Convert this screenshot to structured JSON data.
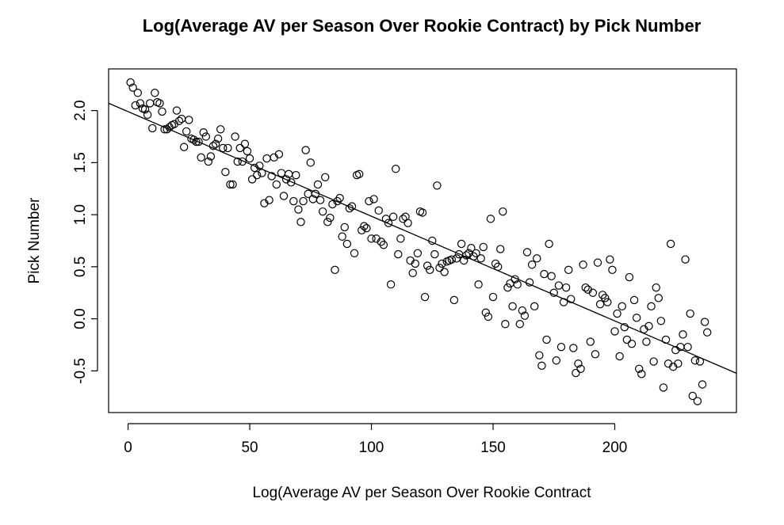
{
  "chart_data": {
    "type": "scatter",
    "title": "Log(Average AV per Season Over Rookie Contract) by Pick Number",
    "xlabel": "Log(Average AV per Season Over Rookie Contract",
    "ylabel": "Pick Number",
    "xlim": [
      -8,
      250
    ],
    "ylim": [
      -0.9,
      2.4
    ],
    "xticks": [
      0,
      50,
      100,
      150,
      200
    ],
    "yticks": [
      -0.5,
      0.0,
      0.5,
      1.0,
      1.5,
      2.0
    ],
    "xtick_labels": [
      "0",
      "50",
      "100",
      "150",
      "200"
    ],
    "ytick_labels": [
      "-0.5",
      "0.0",
      "0.5",
      "1.0",
      "1.5",
      "2.0"
    ],
    "grid": false,
    "point_style": "open-circle",
    "regression_line": {
      "intercept": 1.99,
      "slope": -0.01005
    },
    "points": [
      [
        1,
        2.27
      ],
      [
        2,
        2.22
      ],
      [
        3,
        2.05
      ],
      [
        4,
        2.17
      ],
      [
        5,
        2.07
      ],
      [
        6,
        2.02
      ],
      [
        7,
        2.01
      ],
      [
        8,
        1.96
      ],
      [
        9,
        2.07
      ],
      [
        10,
        1.83
      ],
      [
        11,
        2.17
      ],
      [
        12,
        2.08
      ],
      [
        13,
        2.07
      ],
      [
        14,
        1.99
      ],
      [
        15,
        1.82
      ],
      [
        16,
        1.82
      ],
      [
        17,
        1.84
      ],
      [
        18,
        1.86
      ],
      [
        19,
        1.87
      ],
      [
        20,
        2.0
      ],
      [
        21,
        1.9
      ],
      [
        22,
        1.92
      ],
      [
        23,
        1.65
      ],
      [
        24,
        1.8
      ],
      [
        25,
        1.91
      ],
      [
        26,
        1.73
      ],
      [
        27,
        1.72
      ],
      [
        28,
        1.7
      ],
      [
        29,
        1.7
      ],
      [
        30,
        1.55
      ],
      [
        31,
        1.79
      ],
      [
        32,
        1.75
      ],
      [
        33,
        1.51
      ],
      [
        34,
        1.56
      ],
      [
        35,
        1.66
      ],
      [
        36,
        1.68
      ],
      [
        37,
        1.73
      ],
      [
        38,
        1.82
      ],
      [
        39,
        1.64
      ],
      [
        40,
        1.41
      ],
      [
        41,
        1.64
      ],
      [
        42,
        1.29
      ],
      [
        43,
        1.29
      ],
      [
        44,
        1.75
      ],
      [
        45,
        1.51
      ],
      [
        46,
        1.64
      ],
      [
        47,
        1.51
      ],
      [
        48,
        1.68
      ],
      [
        49,
        1.61
      ],
      [
        50,
        1.54
      ],
      [
        51,
        1.34
      ],
      [
        52,
        1.45
      ],
      [
        53,
        1.38
      ],
      [
        54,
        1.47
      ],
      [
        55,
        1.4
      ],
      [
        56,
        1.11
      ],
      [
        57,
        1.54
      ],
      [
        58,
        1.14
      ],
      [
        59,
        1.37
      ],
      [
        60,
        1.55
      ],
      [
        61,
        1.29
      ],
      [
        62,
        1.58
      ],
      [
        63,
        1.4
      ],
      [
        64,
        1.18
      ],
      [
        65,
        1.34
      ],
      [
        66,
        1.39
      ],
      [
        67,
        1.31
      ],
      [
        68,
        1.13
      ],
      [
        69,
        1.38
      ],
      [
        70,
        1.05
      ],
      [
        71,
        0.93
      ],
      [
        72,
        1.13
      ],
      [
        73,
        1.62
      ],
      [
        74,
        1.2
      ],
      [
        75,
        1.5
      ],
      [
        76,
        1.15
      ],
      [
        77,
        1.2
      ],
      [
        78,
        1.29
      ],
      [
        79,
        1.14
      ],
      [
        80,
        1.03
      ],
      [
        81,
        1.36
      ],
      [
        82,
        0.93
      ],
      [
        83,
        0.97
      ],
      [
        84,
        1.1
      ],
      [
        85,
        0.47
      ],
      [
        86,
        1.13
      ],
      [
        87,
        1.16
      ],
      [
        88,
        0.79
      ],
      [
        89,
        0.88
      ],
      [
        90,
        0.72
      ],
      [
        91,
        1.06
      ],
      [
        92,
        1.08
      ],
      [
        93,
        0.63
      ],
      [
        94,
        1.38
      ],
      [
        95,
        1.39
      ],
      [
        96,
        0.85
      ],
      [
        97,
        0.89
      ],
      [
        98,
        0.87
      ],
      [
        99,
        1.13
      ],
      [
        100,
        0.77
      ],
      [
        101,
        1.15
      ],
      [
        102,
        0.77
      ],
      [
        103,
        1.04
      ],
      [
        104,
        0.74
      ],
      [
        105,
        0.71
      ],
      [
        106,
        0.96
      ],
      [
        107,
        0.92
      ],
      [
        108,
        0.33
      ],
      [
        109,
        0.98
      ],
      [
        110,
        1.44
      ],
      [
        111,
        0.62
      ],
      [
        112,
        0.77
      ],
      [
        113,
        0.96
      ],
      [
        114,
        0.98
      ],
      [
        115,
        0.92
      ],
      [
        116,
        0.56
      ],
      [
        117,
        0.44
      ],
      [
        118,
        0.53
      ],
      [
        119,
        0.63
      ],
      [
        120,
        1.03
      ],
      [
        121,
        1.02
      ],
      [
        122,
        0.21
      ],
      [
        123,
        0.51
      ],
      [
        124,
        0.47
      ],
      [
        125,
        0.75
      ],
      [
        126,
        0.62
      ],
      [
        127,
        1.28
      ],
      [
        128,
        0.49
      ],
      [
        129,
        0.53
      ],
      [
        130,
        0.45
      ],
      [
        131,
        0.55
      ],
      [
        132,
        0.56
      ],
      [
        133,
        0.57
      ],
      [
        134,
        0.18
      ],
      [
        135,
        0.58
      ],
      [
        136,
        0.62
      ],
      [
        137,
        0.72
      ],
      [
        138,
        0.56
      ],
      [
        139,
        0.61
      ],
      [
        140,
        0.63
      ],
      [
        141,
        0.68
      ],
      [
        142,
        0.6
      ],
      [
        143,
        0.63
      ],
      [
        144,
        0.33
      ],
      [
        145,
        0.58
      ],
      [
        146,
        0.69
      ],
      [
        147,
        0.06
      ],
      [
        148,
        0.02
      ],
      [
        149,
        0.96
      ],
      [
        150,
        0.21
      ],
      [
        151,
        0.53
      ],
      [
        152,
        0.5
      ],
      [
        153,
        0.67
      ],
      [
        154,
        1.03
      ],
      [
        155,
        -0.05
      ],
      [
        156,
        0.3
      ],
      [
        157,
        0.34
      ],
      [
        158,
        0.12
      ],
      [
        159,
        0.38
      ],
      [
        160,
        0.33
      ],
      [
        161,
        -0.05
      ],
      [
        162,
        0.08
      ],
      [
        163,
        0.03
      ],
      [
        164,
        0.64
      ],
      [
        165,
        0.35
      ],
      [
        166,
        0.52
      ],
      [
        167,
        0.12
      ],
      [
        168,
        0.58
      ],
      [
        169,
        -0.35
      ],
      [
        170,
        -0.45
      ],
      [
        171,
        0.43
      ],
      [
        172,
        -0.2
      ],
      [
        173,
        0.72
      ],
      [
        174,
        0.41
      ],
      [
        175,
        0.25
      ],
      [
        176,
        -0.4
      ],
      [
        177,
        0.32
      ],
      [
        178,
        -0.27
      ],
      [
        179,
        0.16
      ],
      [
        180,
        0.3
      ],
      [
        181,
        0.47
      ],
      [
        182,
        0.19
      ],
      [
        183,
        -0.28
      ],
      [
        184,
        -0.52
      ],
      [
        185,
        -0.43
      ],
      [
        186,
        -0.48
      ],
      [
        187,
        0.52
      ],
      [
        188,
        0.3
      ],
      [
        189,
        0.28
      ],
      [
        190,
        -0.22
      ],
      [
        191,
        0.25
      ],
      [
        192,
        -0.34
      ],
      [
        193,
        0.54
      ],
      [
        194,
        0.14
      ],
      [
        195,
        0.23
      ],
      [
        196,
        0.2
      ],
      [
        197,
        0.16
      ],
      [
        198,
        0.57
      ],
      [
        199,
        0.47
      ],
      [
        200,
        -0.12
      ],
      [
        201,
        0.05
      ],
      [
        202,
        -0.36
      ],
      [
        203,
        0.12
      ],
      [
        204,
        -0.08
      ],
      [
        205,
        -0.2
      ],
      [
        206,
        0.4
      ],
      [
        207,
        -0.24
      ],
      [
        208,
        0.18
      ],
      [
        209,
        0.01
      ],
      [
        210,
        -0.48
      ],
      [
        211,
        -0.53
      ],
      [
        212,
        -0.1
      ],
      [
        213,
        -0.22
      ],
      [
        214,
        -0.07
      ],
      [
        215,
        0.12
      ],
      [
        216,
        -0.41
      ],
      [
        217,
        0.3
      ],
      [
        218,
        0.2
      ],
      [
        219,
        -0.02
      ],
      [
        220,
        -0.66
      ],
      [
        221,
        -0.2
      ],
      [
        222,
        -0.43
      ],
      [
        223,
        0.72
      ],
      [
        224,
        -0.46
      ],
      [
        225,
        -0.3
      ],
      [
        226,
        -0.43
      ],
      [
        227,
        -0.27
      ],
      [
        228,
        -0.15
      ],
      [
        229,
        0.57
      ],
      [
        230,
        -0.27
      ],
      [
        231,
        0.05
      ],
      [
        232,
        -0.74
      ],
      [
        233,
        -0.4
      ],
      [
        234,
        -0.79
      ],
      [
        235,
        -0.41
      ],
      [
        236,
        -0.63
      ],
      [
        237,
        -0.03
      ],
      [
        238,
        -0.13
      ]
    ]
  }
}
